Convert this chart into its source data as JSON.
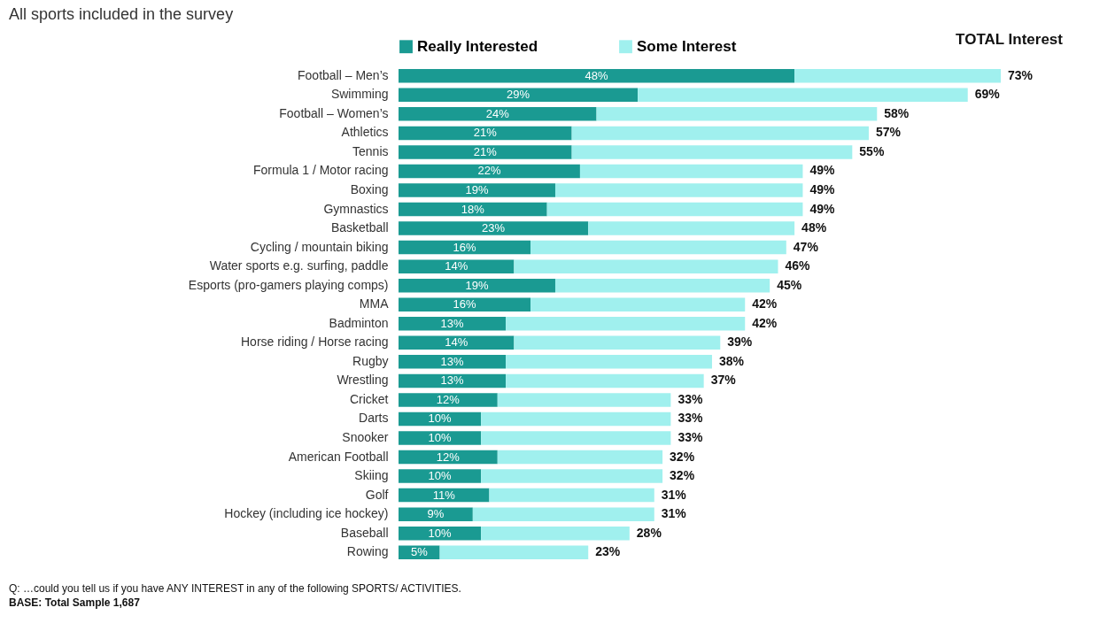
{
  "chart_data": {
    "type": "bar",
    "orientation": "horizontal",
    "stacked": true,
    "title": "All sports included in the survey",
    "categories": [
      "Football – Men’s",
      "Swimming",
      "Football – Women’s",
      "Athletics",
      "Tennis",
      "Formula 1 / Motor racing",
      "Boxing",
      "Gymnastics",
      "Basketball",
      "Cycling / mountain biking",
      "Water sports e.g. surfing, paddle",
      "Esports (pro-gamers playing comps)",
      "MMA",
      "Badminton",
      "Horse riding / Horse racing",
      "Rugby",
      "Wrestling",
      "Cricket",
      "Darts",
      "Snooker",
      "American Football",
      "Skiing",
      "Golf",
      "Hockey (including ice hockey)",
      "Baseball",
      "Rowing"
    ],
    "series": [
      {
        "name": "Really Interested",
        "color": "#1a9a92",
        "values": [
          48,
          29,
          24,
          21,
          21,
          22,
          19,
          18,
          23,
          16,
          14,
          19,
          16,
          13,
          14,
          13,
          13,
          12,
          10,
          10,
          12,
          10,
          11,
          9,
          10,
          5
        ],
        "value_labels": [
          "48%",
          "29%",
          "24%",
          "21%",
          "21%",
          "22%",
          "19%",
          "18%",
          "23%",
          "16%",
          "14%",
          "19%",
          "16%",
          "13%",
          "14%",
          "13%",
          "13%",
          "12%",
          "10%",
          "10%",
          "12%",
          "10%",
          "11%",
          "9%",
          "10%",
          "5%"
        ]
      },
      {
        "name": "Some Interest",
        "color": "#a0f0ee",
        "values": [
          25,
          40,
          34,
          36,
          34,
          27,
          30,
          31,
          25,
          31,
          32,
          26,
          26,
          29,
          25,
          25,
          24,
          21,
          23,
          23,
          20,
          22,
          20,
          22,
          18,
          18
        ]
      }
    ],
    "totals": [
      "73%",
      "69%",
      "58%",
      "57%",
      "55%",
      "49%",
      "49%",
      "49%",
      "48%",
      "47%",
      "46%",
      "45%",
      "42%",
      "42%",
      "39%",
      "38%",
      "37%",
      "33%",
      "33%",
      "33%",
      "32%",
      "32%",
      "31%",
      "31%",
      "28%",
      "23%"
    ],
    "annotations": [
      "TOTAL Interest",
      "Q: …could you tell us if you have ANY INTEREST in any of the following SPORTS/ ACTIVITIES.",
      "BASE: Total Sample 1,687"
    ],
    "legend": "top",
    "grid": false,
    "tick_labels": "y"
  }
}
